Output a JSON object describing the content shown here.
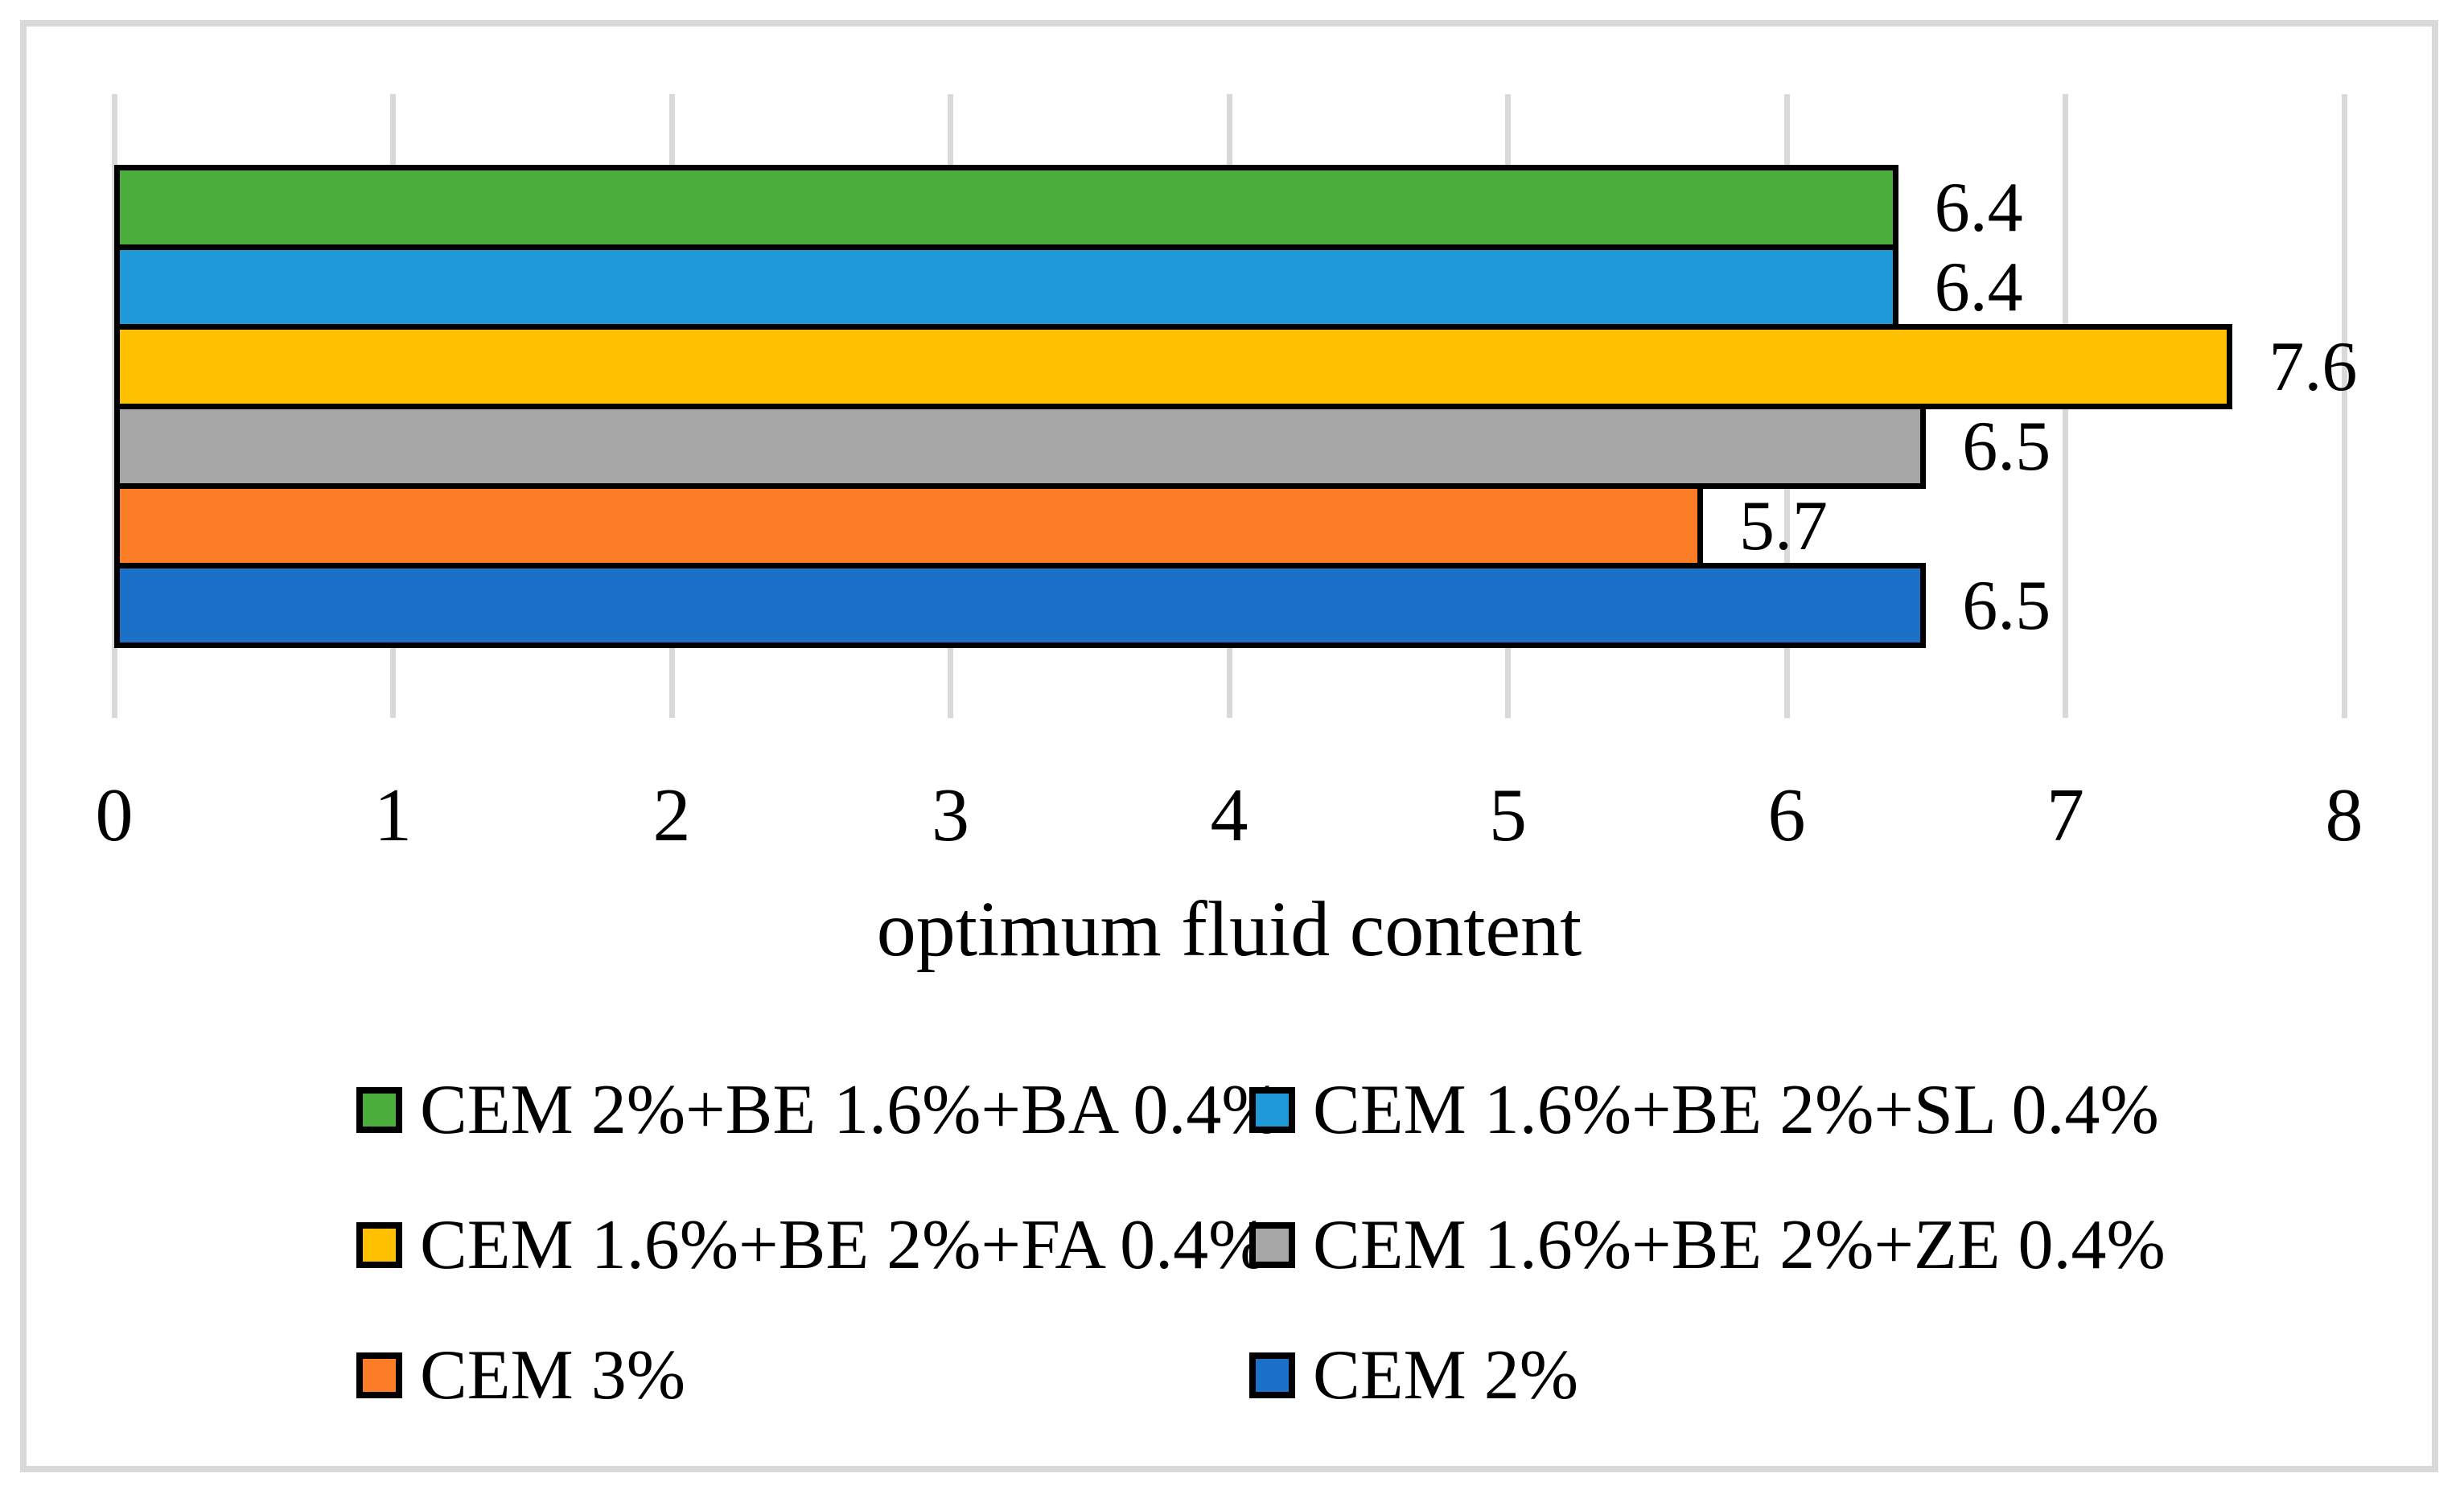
{
  "figure": {
    "border_color": "#d9d9d9",
    "background_color": "#ffffff"
  },
  "chart_data": {
    "type": "bar",
    "orientation": "horizontal",
    "xlabel": "optimum fluid content",
    "xlim": [
      0,
      8
    ],
    "xticks": [
      "0",
      "1",
      "2",
      "3",
      "4",
      "5",
      "6",
      "7",
      "8"
    ],
    "grid": true,
    "gridline_color": "#d9d9d9",
    "bar_outline_color": "#000000",
    "legend_position": "bottom",
    "legend_columns": 2,
    "series": [
      {
        "name": "CEM 2%+BE 1.6%+BA 0.4%",
        "value": 6.4,
        "label": "6.4",
        "color": "#4bad3c"
      },
      {
        "name": "CEM 1.6%+BE 2%+SL 0.4%",
        "value": 6.4,
        "label": "6.4",
        "color": "#2099d8"
      },
      {
        "name": "CEM 1.6%+BE 2%+FA 0.4%",
        "value": 7.6,
        "label": "7.6",
        "color": "#ffc000"
      },
      {
        "name": "CEM 1.6%+BE 2%+ZE 0.4%",
        "value": 6.5,
        "label": "6.5",
        "color": "#a6a6a6"
      },
      {
        "name": "CEM 3%",
        "value": 5.7,
        "label": "5.7",
        "color": "#fb7d26"
      },
      {
        "name": "CEM 2%",
        "value": 6.5,
        "label": "6.5",
        "color": "#1b70c8"
      }
    ]
  }
}
